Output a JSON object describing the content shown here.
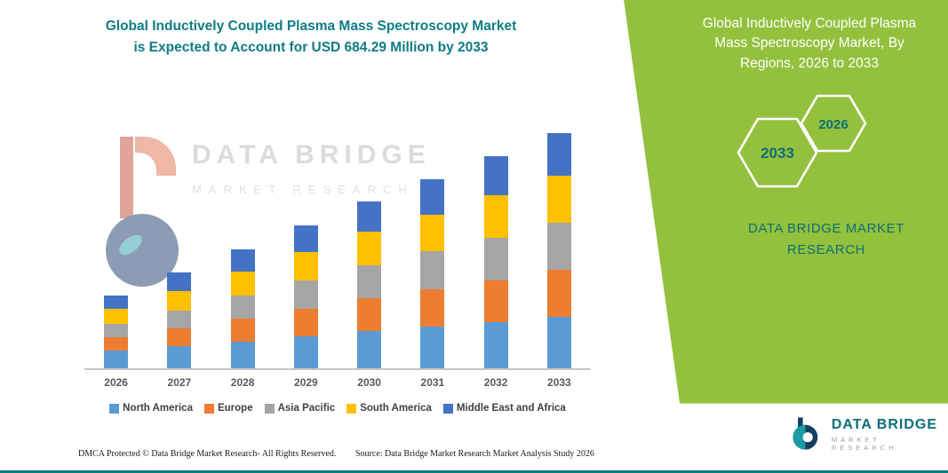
{
  "colors": {
    "accent_teal": "#0E7C84",
    "panel_green": "#93C13E",
    "axis_label_gray": "#595959"
  },
  "chart_section": {
    "title_line1": "Global Inductively Coupled Plasma Mass Spectroscopy Market",
    "title_line2": "is Expected to Account for USD 684.29 Million by 2033",
    "watermark": {
      "line1": "DATA BRIDGE",
      "line2": "MARKET RESEARCH"
    },
    "footer_left": "DMCA Protected © Data Bridge Market Research-  All Rights Reserved.",
    "footer_right": "Source: Data Bridge Market Research  Market Analysis Study 2026"
  },
  "chart_data": {
    "type": "bar",
    "stacked": true,
    "title": "Global Inductively Coupled Plasma Mass Spectroscopy Market is Expected to Account for USD 684.29 Million by 2033",
    "xlabel": "",
    "ylabel": "",
    "ylim": [
      0,
      700
    ],
    "grid": false,
    "legend_position": "bottom",
    "categories": [
      "2026",
      "2027",
      "2028",
      "2029",
      "2030",
      "2031",
      "2032",
      "2033"
    ],
    "series": [
      {
        "name": "North America",
        "color": "#5B9BD5",
        "values": [
          52,
          65,
          77,
          93,
          108,
          121,
          134,
          150.29
        ]
      },
      {
        "name": "Europe",
        "color": "#ED7D31",
        "values": [
          39,
          52,
          67,
          80,
          96,
          108,
          121,
          137
        ]
      },
      {
        "name": "Asia Pacific",
        "color": "#A5A5A5",
        "values": [
          39,
          52,
          67,
          83,
          96,
          111,
          124,
          137
        ]
      },
      {
        "name": "South America",
        "color": "#FFC000",
        "values": [
          44,
          57,
          70,
          83,
          98,
          108,
          124,
          137
        ]
      },
      {
        "name": "Middle East and Africa",
        "color": "#4472C4",
        "values": [
          39,
          52,
          65,
          77,
          88,
          101,
          114,
          123
        ]
      }
    ],
    "total_2033_label": "USD 684.29 Million"
  },
  "green_panel": {
    "title_lines": [
      "Global Inductively Coupled Plasma",
      "Mass Spectroscopy Market, By",
      "Regions, 2026 to 2033"
    ],
    "hex_left_year": "2033",
    "hex_right_year": "2026",
    "brand_lines": [
      "DATA BRIDGE MARKET",
      "RESEARCH"
    ]
  },
  "footer_logo": {
    "name": "DATA BRIDGE",
    "sub": "MARKET RESEARCH"
  }
}
